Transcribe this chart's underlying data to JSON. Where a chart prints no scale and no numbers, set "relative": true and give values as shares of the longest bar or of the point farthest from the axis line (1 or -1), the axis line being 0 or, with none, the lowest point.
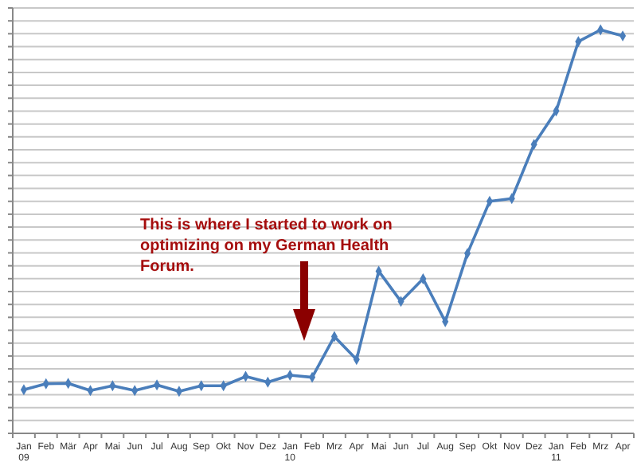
{
  "chart_data": {
    "type": "line",
    "relative": true,
    "grid": "y",
    "marker": "diamond",
    "line_style": "solid",
    "categories": [
      "Jan\n09",
      "Feb",
      "Mär",
      "Apr",
      "Mai",
      "Jun",
      "Jul",
      "Aug",
      "Sep",
      "Okt",
      "Nov",
      "Dez",
      "Jan\n10",
      "Feb",
      "Mrz",
      "Apr",
      "Mai",
      "Jun",
      "Jul",
      "Aug",
      "Sep",
      "Okt",
      "Nov",
      "Dez",
      "Jan\n11",
      "Feb",
      "Mrz",
      "Apr"
    ],
    "series": [
      {
        "color": "#4a7ebb",
        "values": [
          0.108,
          0.123,
          0.124,
          0.106,
          0.118,
          0.106,
          0.12,
          0.104,
          0.118,
          0.118,
          0.141,
          0.127,
          0.144,
          0.139,
          0.24,
          0.183,
          0.402,
          0.327,
          0.383,
          0.277,
          0.446,
          0.575,
          0.582,
          0.716,
          0.799,
          0.971,
          1,
          0.985
        ]
      }
    ],
    "annotations": [
      "This is where I started to work on optimizing on my German Health Forum."
    ]
  }
}
